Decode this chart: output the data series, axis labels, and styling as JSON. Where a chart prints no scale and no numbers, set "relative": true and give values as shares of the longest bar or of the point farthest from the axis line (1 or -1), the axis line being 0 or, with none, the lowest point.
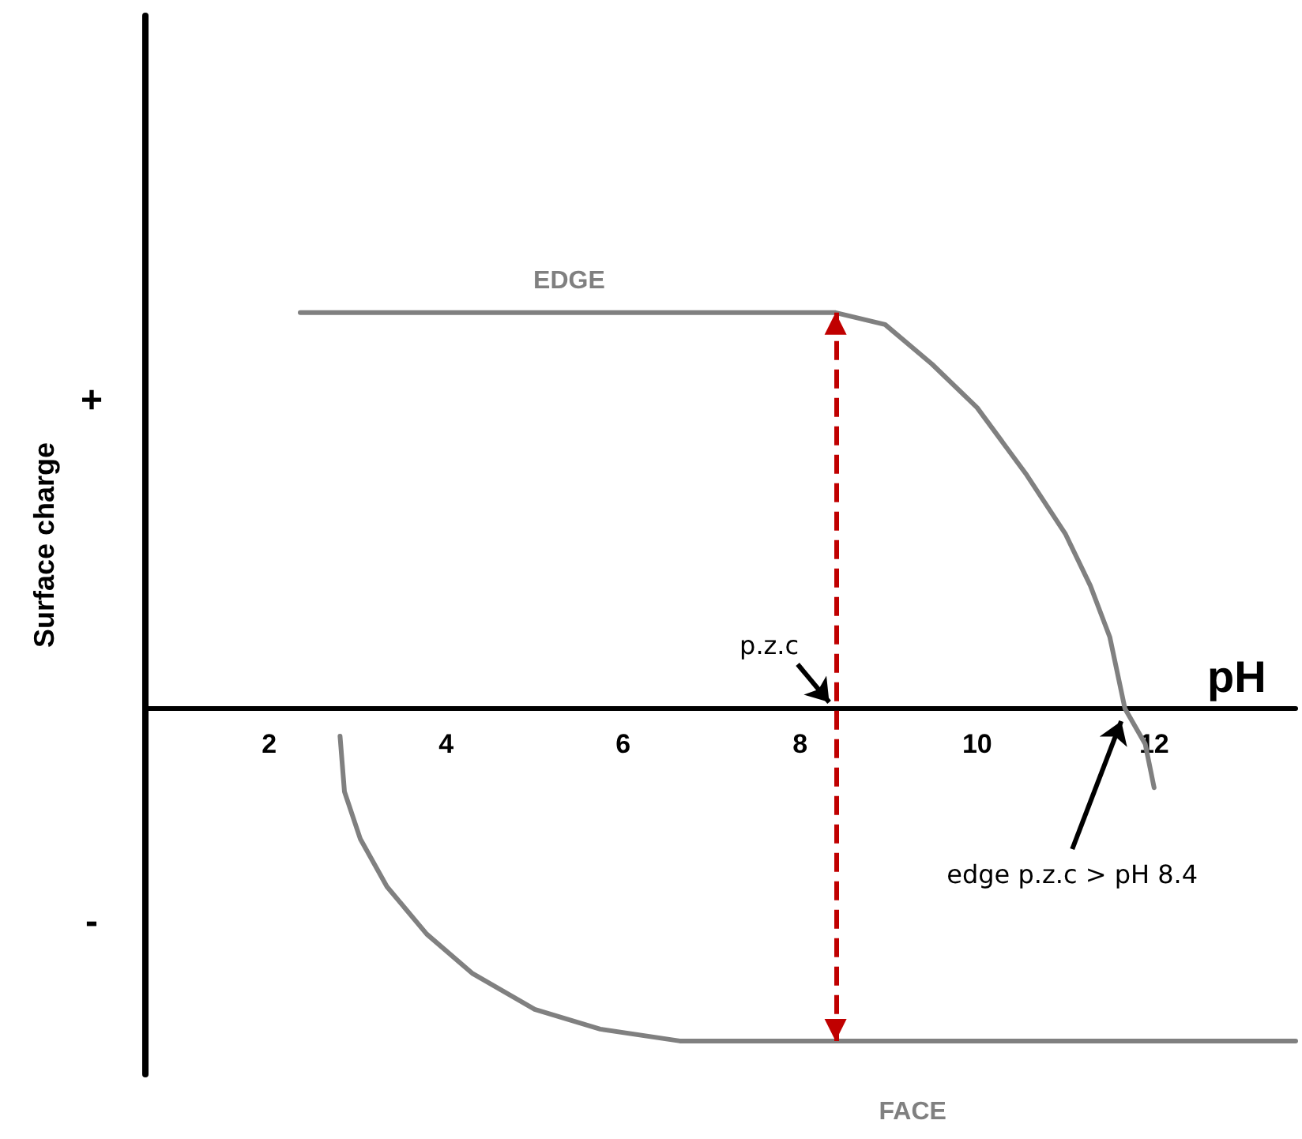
{
  "chart_data": {
    "type": "line",
    "xlabel": "pH",
    "ylabel": "Surface charge",
    "relative": true,
    "xlim": [
      0.6,
      13.6
    ],
    "xticks": [
      2,
      4,
      6,
      8,
      10,
      12
    ],
    "grid": false,
    "legend": false,
    "marker": "none",
    "line_style": "solid",
    "series": [
      {
        "name": "EDGE",
        "color": "#808080",
        "x": [
          2.35,
          8.4,
          8.96,
          9.49,
          10.0,
          10.56,
          11.0,
          11.28,
          11.5,
          11.67,
          11.9,
          12.0
        ],
        "values": [
          1,
          1,
          0.97,
          0.87,
          0.76,
          0.59,
          0.44,
          0.31,
          0.18,
          0,
          -0.09,
          -0.2
        ]
      },
      {
        "name": "FACE",
        "color": "#808080",
        "x": [
          2.8,
          2.85,
          3.03,
          3.33,
          3.78,
          4.3,
          5.0,
          5.74,
          6.64,
          8.4,
          13.6
        ],
        "values": [
          -0.07,
          -0.21,
          -0.33,
          -0.45,
          -0.57,
          -0.67,
          -0.76,
          -0.81,
          -0.84,
          -0.84,
          -0.84
        ]
      }
    ],
    "ref_lines": [
      {
        "axis": "x",
        "value": 8.4,
        "color": "#c00000",
        "line_style": "dashed"
      }
    ],
    "annotations": [
      "+",
      "-",
      {
        "text": "p.z.c",
        "x": 8.4,
        "y": 0
      },
      {
        "text": "edge p.z.c > pH 8.4",
        "x": 11.7,
        "y": 0
      }
    ]
  }
}
